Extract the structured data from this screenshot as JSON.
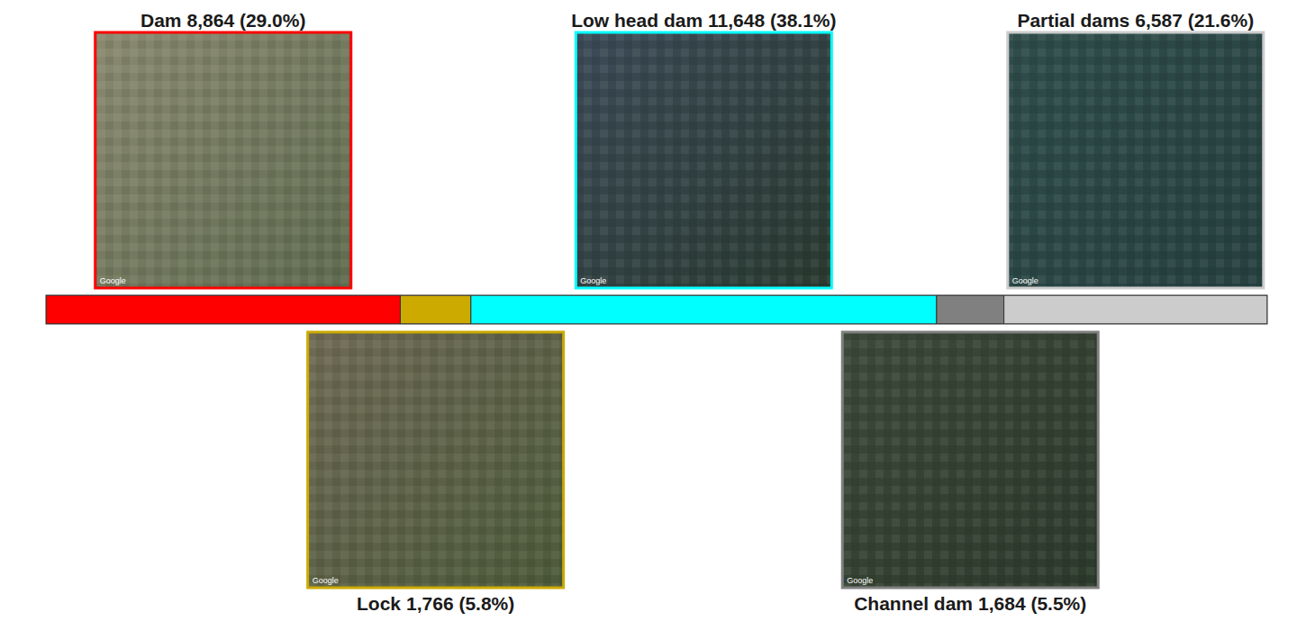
{
  "chart_data": {
    "type": "bar",
    "orientation": "horizontal",
    "stacked": true,
    "tick_labels": false,
    "categories": [
      "Dam",
      "Lock",
      "Low head dam",
      "Channel dam",
      "Partial dams"
    ],
    "values": [
      8864,
      1766,
      11648,
      1684,
      6587
    ],
    "value_labels": [
      "8,864 (29.0%)",
      "1,766 (5.8%)",
      "11,648 (38.1%)",
      "1,684 (5.5%)",
      "6,587 (21.6%)"
    ],
    "colors": [
      "#ff0000",
      "#ccaa00",
      "#00ffff",
      "#808080",
      "#cccccc"
    ],
    "xlim": [
      0,
      30549
    ],
    "data_labels": true,
    "watermark": "Google"
  }
}
